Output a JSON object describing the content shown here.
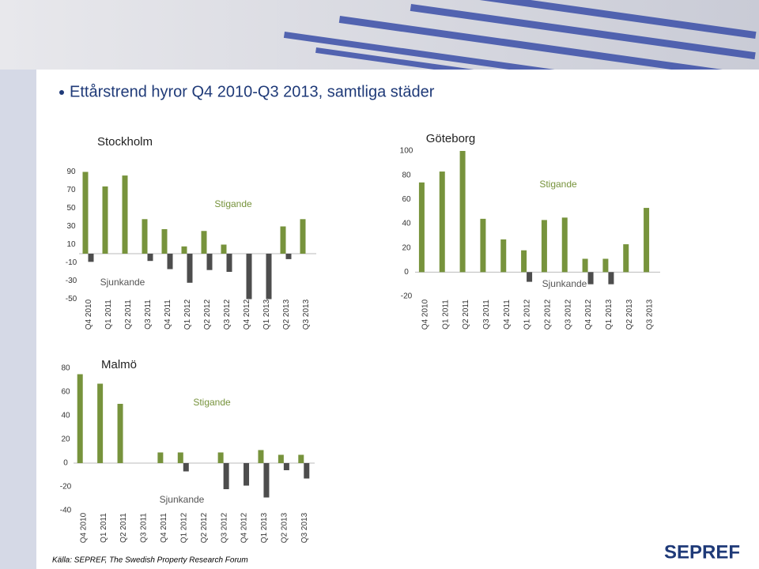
{
  "header": {
    "title": "Ettårstrend hyror Q4 2010-Q3 2013, samtliga städer"
  },
  "chart_data": [
    {
      "type": "bar",
      "title": "Stockholm",
      "categories": [
        "Q4 2010",
        "Q1 2011",
        "Q2 2011",
        "Q3 2011",
        "Q4 2011",
        "Q1 2012",
        "Q2 2012",
        "Q3 2012",
        "Q4 2012",
        "Q1 2013",
        "Q2 2013",
        "Q3 2013"
      ],
      "series": [
        {
          "name": "Stigande",
          "color": "#77933c",
          "values": [
            90,
            74,
            86,
            38,
            27,
            8,
            25,
            10,
            null,
            null,
            30,
            38
          ]
        },
        {
          "name": "Sjunkande",
          "color": "#4d4d4d",
          "values": [
            -9,
            null,
            null,
            -8,
            -17,
            -32,
            -18,
            -20,
            -50,
            -50,
            -6,
            null
          ]
        }
      ],
      "ylim": [
        -50,
        90
      ],
      "yticks": [
        -50,
        -30,
        -10,
        10,
        30,
        50,
        70,
        90
      ]
    },
    {
      "type": "bar",
      "title": "Göteborg",
      "categories": [
        "Q4 2010",
        "Q1 2011",
        "Q2 2011",
        "Q3 2011",
        "Q4 2011",
        "Q1 2012",
        "Q2 2012",
        "Q3 2012",
        "Q4 2012",
        "Q1 2013",
        "Q2 2013",
        "Q3 2013"
      ],
      "series": [
        {
          "name": "Stigande",
          "color": "#77933c",
          "values": [
            74,
            83,
            100,
            44,
            27,
            18,
            43,
            45,
            11,
            11,
            23,
            53
          ]
        },
        {
          "name": "Sjunkande",
          "color": "#4d4d4d",
          "values": [
            null,
            null,
            null,
            null,
            null,
            -8,
            null,
            null,
            -10,
            -10,
            null,
            null
          ]
        }
      ],
      "ylim": [
        -20,
        100
      ],
      "yticks": [
        -20,
        0,
        20,
        40,
        60,
        80,
        100
      ]
    },
    {
      "type": "bar",
      "title": "Malmö",
      "categories": [
        "Q4 2010",
        "Q1 2011",
        "Q2 2011",
        "Q3 2011",
        "Q4 2011",
        "Q1 2012",
        "Q2 2012",
        "Q3 2012",
        "Q4 2012",
        "Q1 2013",
        "Q2 2013",
        "Q3 2013"
      ],
      "series": [
        {
          "name": "Stigande",
          "color": "#77933c",
          "values": [
            75,
            67,
            50,
            null,
            9,
            9,
            null,
            9,
            null,
            11,
            7,
            7
          ]
        },
        {
          "name": "Sjunkande",
          "color": "#4d4d4d",
          "values": [
            null,
            null,
            null,
            null,
            null,
            -7,
            null,
            -22,
            -19,
            -29,
            -6,
            -13
          ]
        }
      ],
      "ylim": [
        -40,
        80
      ],
      "yticks": [
        -40,
        -20,
        0,
        20,
        40,
        60,
        80
      ]
    }
  ],
  "footer": {
    "source": "Källa: SEPREF, The Swedish Property Research Forum",
    "logo": "SEPREF"
  }
}
